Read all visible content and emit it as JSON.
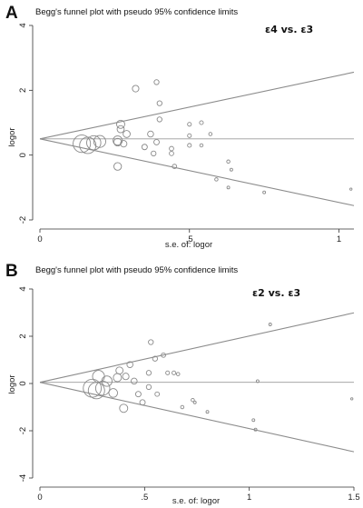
{
  "chart_data": [
    {
      "type": "scatter",
      "panel_label": "A",
      "title": "Begg's funnel plot with pseudo 95% confidence limits",
      "comparison": "ε4  vs.  ε3",
      "xlabel": "s.e. of: logor",
      "ylabel": "logor",
      "xlim": [
        0,
        1.05
      ],
      "ylim": [
        -2,
        4
      ],
      "xticks": [
        0,
        0.5,
        1
      ],
      "xtick_labels": [
        "0",
        ".5",
        "1"
      ],
      "yticks": [
        -2,
        0,
        2,
        4
      ],
      "ytick_labels": [
        "-2",
        "0",
        "2",
        "4"
      ],
      "pooled_logor": 0.5,
      "grid": false,
      "points": [
        {
          "se": 0.14,
          "logor": 0.35,
          "size": 3.2
        },
        {
          "se": 0.16,
          "logor": 0.3,
          "size": 3.0
        },
        {
          "se": 0.18,
          "logor": 0.38,
          "size": 2.6
        },
        {
          "se": 0.2,
          "logor": 0.42,
          "size": 2.2
        },
        {
          "se": 0.26,
          "logor": 0.45,
          "size": 1.7
        },
        {
          "se": 0.27,
          "logor": 0.95,
          "size": 1.5
        },
        {
          "se": 0.27,
          "logor": 0.8,
          "size": 1.3
        },
        {
          "se": 0.26,
          "logor": 0.4,
          "size": 1.4
        },
        {
          "se": 0.26,
          "logor": -0.35,
          "size": 1.4
        },
        {
          "se": 0.29,
          "logor": 0.65,
          "size": 1.3
        },
        {
          "se": 0.28,
          "logor": 0.35,
          "size": 1.2
        },
        {
          "se": 0.32,
          "logor": 2.05,
          "size": 1.2
        },
        {
          "se": 0.35,
          "logor": 0.25,
          "size": 1.0
        },
        {
          "se": 0.37,
          "logor": 0.65,
          "size": 1.1
        },
        {
          "se": 0.39,
          "logor": 2.25,
          "size": 0.9
        },
        {
          "se": 0.39,
          "logor": 0.4,
          "size": 1.0
        },
        {
          "se": 0.38,
          "logor": 0.05,
          "size": 0.9
        },
        {
          "se": 0.4,
          "logor": 1.6,
          "size": 0.9
        },
        {
          "se": 0.4,
          "logor": 1.1,
          "size": 0.9
        },
        {
          "se": 0.44,
          "logor": 0.2,
          "size": 0.8
        },
        {
          "se": 0.44,
          "logor": 0.05,
          "size": 0.8
        },
        {
          "se": 0.45,
          "logor": -0.35,
          "size": 0.8
        },
        {
          "se": 0.5,
          "logor": 0.95,
          "size": 0.7
        },
        {
          "se": 0.5,
          "logor": 0.6,
          "size": 0.7
        },
        {
          "se": 0.5,
          "logor": 0.3,
          "size": 0.7
        },
        {
          "se": 0.54,
          "logor": 1.0,
          "size": 0.7
        },
        {
          "se": 0.54,
          "logor": 0.3,
          "size": 0.6
        },
        {
          "se": 0.57,
          "logor": 0.65,
          "size": 0.6
        },
        {
          "se": 0.59,
          "logor": -0.75,
          "size": 0.6
        },
        {
          "se": 0.63,
          "logor": -0.2,
          "size": 0.6
        },
        {
          "se": 0.63,
          "logor": -1.0,
          "size": 0.5
        },
        {
          "se": 0.64,
          "logor": -0.45,
          "size": 0.5
        },
        {
          "se": 0.75,
          "logor": -1.15,
          "size": 0.5
        },
        {
          "se": 1.04,
          "logor": -1.05,
          "size": 0.4
        }
      ]
    },
    {
      "type": "scatter",
      "panel_label": "B",
      "title": "Begg's funnel plot with pseudo 95% confidence limits",
      "comparison": "ε2  vs.  ε3",
      "xlabel": "s.e. of: logor",
      "ylabel": "logor",
      "xlim": [
        0,
        1.5
      ],
      "ylim": [
        -4,
        4
      ],
      "xticks": [
        0,
        0.5,
        1,
        1.5
      ],
      "xtick_labels": [
        "0",
        ".5",
        "1",
        "1.5"
      ],
      "yticks": [
        -4,
        -2,
        0,
        2,
        4
      ],
      "ytick_labels": [
        "-4",
        "-2",
        "0",
        "2",
        "4"
      ],
      "pooled_logor": 0.05,
      "grid": false,
      "points": [
        {
          "se": 0.25,
          "logor": -0.2,
          "size": 3.3
        },
        {
          "se": 0.27,
          "logor": -0.3,
          "size": 3.0
        },
        {
          "se": 0.3,
          "logor": -0.2,
          "size": 2.6
        },
        {
          "se": 0.28,
          "logor": 0.3,
          "size": 2.2
        },
        {
          "se": 0.32,
          "logor": 0.1,
          "size": 1.9
        },
        {
          "se": 0.35,
          "logor": -0.4,
          "size": 1.6
        },
        {
          "se": 0.37,
          "logor": 0.25,
          "size": 1.5
        },
        {
          "se": 0.38,
          "logor": 0.55,
          "size": 1.3
        },
        {
          "se": 0.4,
          "logor": -1.05,
          "size": 1.5
        },
        {
          "se": 0.41,
          "logor": 0.3,
          "size": 1.2
        },
        {
          "se": 0.43,
          "logor": 0.8,
          "size": 1.1
        },
        {
          "se": 0.45,
          "logor": 0.1,
          "size": 1.1
        },
        {
          "se": 0.47,
          "logor": -0.45,
          "size": 1.0
        },
        {
          "se": 0.49,
          "logor": -0.8,
          "size": 1.0
        },
        {
          "se": 0.52,
          "logor": 0.45,
          "size": 0.9
        },
        {
          "se": 0.52,
          "logor": -0.15,
          "size": 0.9
        },
        {
          "se": 0.53,
          "logor": 1.75,
          "size": 0.9
        },
        {
          "se": 0.55,
          "logor": 1.05,
          "size": 0.9
        },
        {
          "se": 0.56,
          "logor": -0.45,
          "size": 0.8
        },
        {
          "se": 0.59,
          "logor": 1.2,
          "size": 0.8
        },
        {
          "se": 0.61,
          "logor": 0.45,
          "size": 0.7
        },
        {
          "se": 0.64,
          "logor": 0.45,
          "size": 0.7
        },
        {
          "se": 0.66,
          "logor": 0.4,
          "size": 0.6
        },
        {
          "se": 0.68,
          "logor": -1.0,
          "size": 0.6
        },
        {
          "se": 0.73,
          "logor": -0.7,
          "size": 0.6
        },
        {
          "se": 0.74,
          "logor": -0.8,
          "size": 0.5
        },
        {
          "se": 0.8,
          "logor": -1.2,
          "size": 0.5
        },
        {
          "se": 1.02,
          "logor": -1.55,
          "size": 0.5
        },
        {
          "se": 1.03,
          "logor": -1.95,
          "size": 0.5
        },
        {
          "se": 1.04,
          "logor": 0.1,
          "size": 0.5
        },
        {
          "se": 1.1,
          "logor": 2.5,
          "size": 0.5
        },
        {
          "se": 1.49,
          "logor": -0.65,
          "size": 0.4
        }
      ]
    }
  ]
}
